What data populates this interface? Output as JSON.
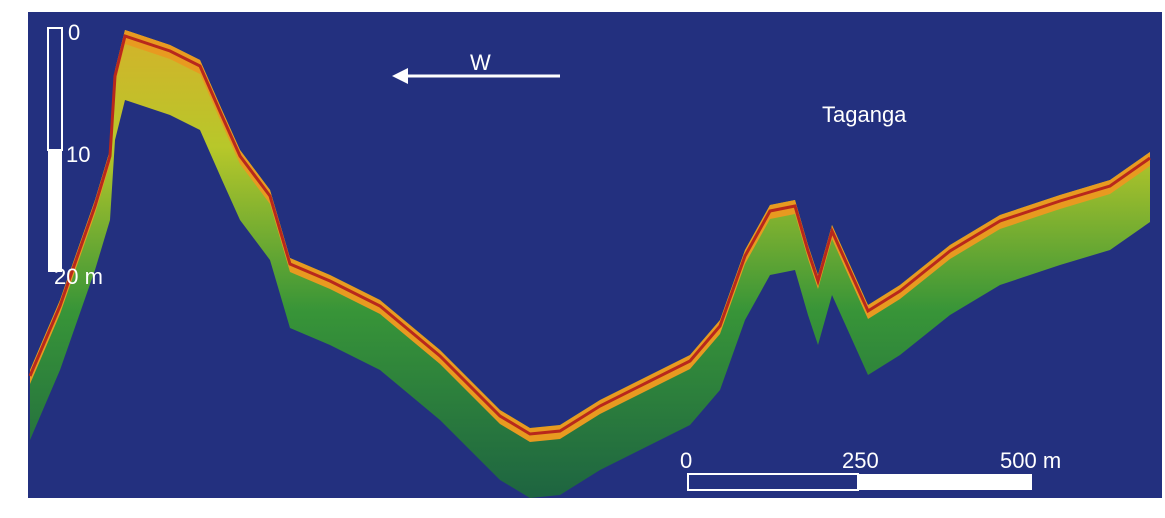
{
  "depth_scale": {
    "labels": [
      "0",
      "10",
      "20 m"
    ]
  },
  "direction": "W",
  "place": "Taganga",
  "distance_scale": {
    "labels": [
      "0",
      "250",
      "500 m"
    ]
  }
}
